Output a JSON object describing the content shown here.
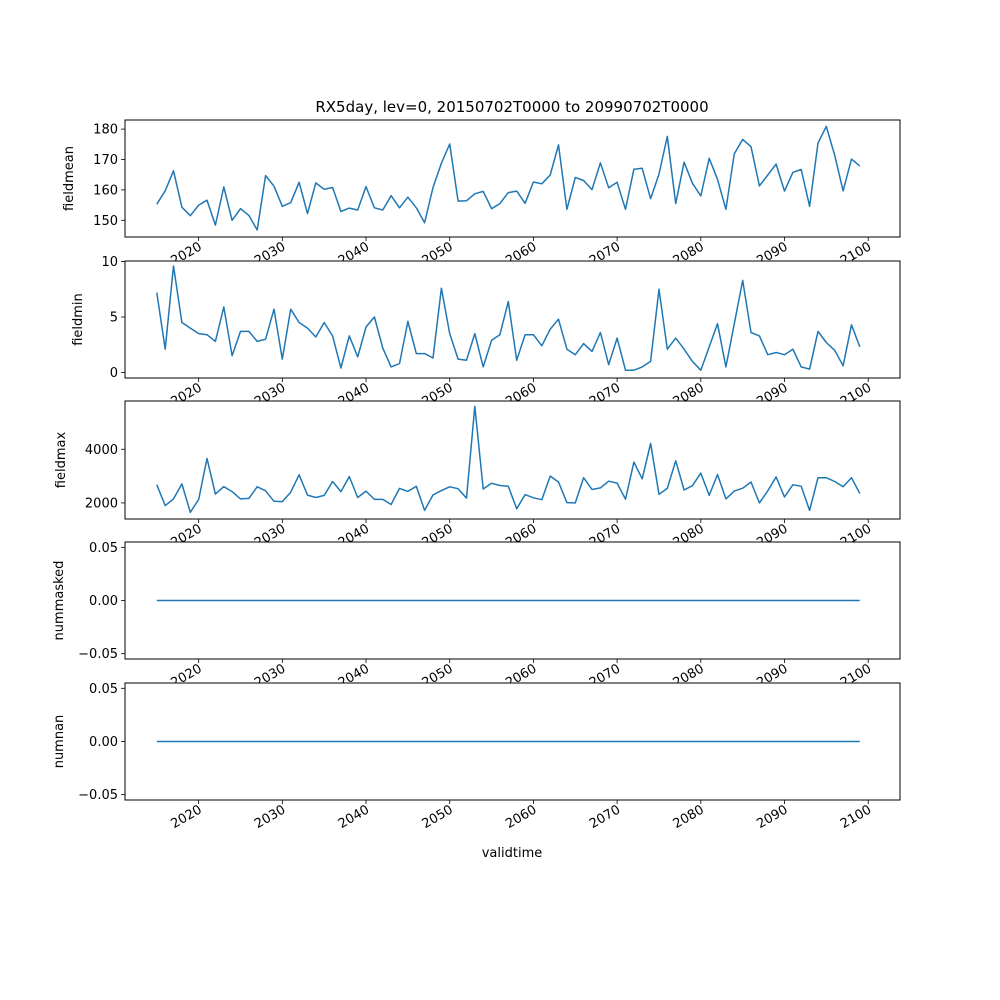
{
  "figure": {
    "title": "RX5day, lev=0, 20150702T0000 to 20990702T0000",
    "xlabel": "validtime",
    "line_color": "#1f77b4"
  },
  "chart_data": [
    {
      "type": "line",
      "ylabel": "fieldmean",
      "xlim": [
        2011.2,
        2103.8
      ],
      "ylim": [
        144.5,
        183
      ],
      "yticks": [
        150,
        160,
        170,
        180
      ],
      "ytick_labels": [
        "150",
        "160",
        "170",
        "180"
      ],
      "xticks": [
        2020,
        2030,
        2040,
        2050,
        2060,
        2070,
        2080,
        2090,
        2100
      ],
      "xtick_labels": [
        "2020",
        "2030",
        "2040",
        "2050",
        "2060",
        "2070",
        "2080",
        "2090",
        "2100"
      ],
      "x": [
        2015,
        2016,
        2017,
        2018,
        2019,
        2020,
        2021,
        2022,
        2023,
        2024,
        2025,
        2026,
        2027,
        2028,
        2029,
        2030,
        2031,
        2032,
        2033,
        2034,
        2035,
        2036,
        2037,
        2038,
        2039,
        2040,
        2041,
        2042,
        2043,
        2044,
        2045,
        2046,
        2047,
        2048,
        2049,
        2050,
        2051,
        2052,
        2053,
        2054,
        2055,
        2056,
        2057,
        2058,
        2059,
        2060,
        2061,
        2062,
        2063,
        2064,
        2065,
        2066,
        2067,
        2068,
        2069,
        2070,
        2071,
        2072,
        2073,
        2074,
        2075,
        2076,
        2077,
        2078,
        2079,
        2080,
        2081,
        2082,
        2083,
        2084,
        2085,
        2086,
        2087,
        2088,
        2089,
        2090,
        2091,
        2092,
        2093,
        2094,
        2095,
        2096,
        2097,
        2098,
        2099
      ],
      "y": [
        155.3,
        159.7,
        166.3,
        154.3,
        151.5,
        155,
        156.6,
        148.4,
        161,
        150,
        153.8,
        151.6,
        146.8,
        164.7,
        161.2,
        154.6,
        155.8,
        162.5,
        152.2,
        162.3,
        160.2,
        160.8,
        152.9,
        154,
        153.4,
        161.1,
        154.1,
        153.4,
        158.1,
        154.1,
        157.6,
        154.1,
        149.2,
        160.8,
        168.8,
        175.1,
        156.3,
        156.4,
        158.7,
        159.5,
        153.8,
        155.5,
        159.1,
        159.6,
        155.6,
        162.6,
        162,
        164.9,
        174.8,
        153.6,
        164.1,
        163.1,
        160.1,
        168.9,
        160.7,
        162.5,
        153.6,
        166.8,
        167.1,
        157.1,
        165.2,
        177.6,
        155.5,
        169.1,
        162.2,
        158,
        170.4,
        163.5,
        153.6,
        171.9,
        176.6,
        174.2,
        161.3,
        164.9,
        168.5,
        159.6,
        165.8,
        166.7,
        154.6,
        175.4,
        180.9,
        171.4,
        159.7,
        170.1,
        167.9
      ]
    },
    {
      "type": "line",
      "ylabel": "fieldmin",
      "xlim": [
        2011.2,
        2103.8
      ],
      "ylim": [
        -0.5,
        10.05
      ],
      "yticks": [
        0,
        5,
        10
      ],
      "ytick_labels": [
        "0",
        "5",
        "10"
      ],
      "xticks": [
        2020,
        2030,
        2040,
        2050,
        2060,
        2070,
        2080,
        2090,
        2100
      ],
      "xtick_labels": [
        "2020",
        "2030",
        "2040",
        "2050",
        "2060",
        "2070",
        "2080",
        "2090",
        "2100"
      ],
      "x": [
        2015,
        2016,
        2017,
        2018,
        2019,
        2020,
        2021,
        2022,
        2023,
        2024,
        2025,
        2026,
        2027,
        2028,
        2029,
        2030,
        2031,
        2032,
        2033,
        2034,
        2035,
        2036,
        2037,
        2038,
        2039,
        2040,
        2041,
        2042,
        2043,
        2044,
        2045,
        2046,
        2047,
        2048,
        2049,
        2050,
        2051,
        2052,
        2053,
        2054,
        2055,
        2056,
        2057,
        2058,
        2059,
        2060,
        2061,
        2062,
        2063,
        2064,
        2065,
        2066,
        2067,
        2068,
        2069,
        2070,
        2071,
        2072,
        2073,
        2074,
        2075,
        2076,
        2077,
        2078,
        2079,
        2080,
        2081,
        2082,
        2083,
        2084,
        2085,
        2086,
        2087,
        2088,
        2089,
        2090,
        2091,
        2092,
        2093,
        2094,
        2095,
        2096,
        2097,
        2098,
        2099
      ],
      "y": [
        7.2,
        2.1,
        9.6,
        4.5,
        4,
        3.5,
        3.4,
        2.8,
        5.9,
        1.5,
        3.7,
        3.7,
        2.8,
        3,
        5.7,
        1.2,
        5.7,
        4.5,
        4,
        3.2,
        4.5,
        3.3,
        0.4,
        3.3,
        1.4,
        4.1,
        5,
        2.2,
        0.5,
        0.8,
        4.6,
        1.7,
        1.7,
        1.3,
        7.6,
        3.5,
        1.2,
        1.1,
        3.5,
        0.5,
        2.9,
        3.4,
        6.4,
        1.1,
        3.4,
        3.4,
        2.4,
        3.9,
        4.8,
        2.1,
        1.6,
        2.6,
        1.9,
        3.6,
        0.7,
        3.1,
        0.2,
        0.2,
        0.5,
        1,
        7.5,
        2.1,
        3.1,
        2.1,
        1,
        0.2,
        2.3,
        4.4,
        0.5,
        4.4,
        8.3,
        3.6,
        3.3,
        1.6,
        1.8,
        1.6,
        2.1,
        0.5,
        0.3,
        3.7,
        2.7,
        2,
        0.6,
        4.3,
        2.3
      ]
    },
    {
      "type": "line",
      "ylabel": "fieldmax",
      "xlim": [
        2011.2,
        2103.8
      ],
      "ylim": [
        1400,
        5800
      ],
      "yticks": [
        2000,
        4000
      ],
      "ytick_labels": [
        "2000",
        "4000"
      ],
      "xticks": [
        2020,
        2030,
        2040,
        2050,
        2060,
        2070,
        2080,
        2090,
        2100
      ],
      "xtick_labels": [
        "2020",
        "2030",
        "2040",
        "2050",
        "2060",
        "2070",
        "2080",
        "2090",
        "2100"
      ],
      "x": [
        2015,
        2016,
        2017,
        2018,
        2019,
        2020,
        2021,
        2022,
        2023,
        2024,
        2025,
        2026,
        2027,
        2028,
        2029,
        2030,
        2031,
        2032,
        2033,
        2034,
        2035,
        2036,
        2037,
        2038,
        2039,
        2040,
        2041,
        2042,
        2043,
        2044,
        2045,
        2046,
        2047,
        2048,
        2049,
        2050,
        2051,
        2052,
        2053,
        2054,
        2055,
        2056,
        2057,
        2058,
        2059,
        2060,
        2061,
        2062,
        2063,
        2064,
        2065,
        2066,
        2067,
        2068,
        2069,
        2070,
        2071,
        2072,
        2073,
        2074,
        2075,
        2076,
        2077,
        2078,
        2079,
        2080,
        2081,
        2082,
        2083,
        2084,
        2085,
        2086,
        2087,
        2088,
        2089,
        2090,
        2091,
        2092,
        2093,
        2094,
        2095,
        2096,
        2097,
        2098,
        2099
      ],
      "y": [
        2680,
        1900,
        2150,
        2710,
        1650,
        2130,
        3660,
        2330,
        2610,
        2420,
        2150,
        2170,
        2600,
        2450,
        2060,
        2050,
        2400,
        3050,
        2290,
        2200,
        2280,
        2800,
        2420,
        2980,
        2200,
        2440,
        2130,
        2130,
        1940,
        2540,
        2430,
        2620,
        1720,
        2300,
        2460,
        2600,
        2530,
        2180,
        5600,
        2520,
        2730,
        2650,
        2620,
        1780,
        2310,
        2190,
        2120,
        3000,
        2780,
        2010,
        2000,
        2940,
        2500,
        2560,
        2810,
        2740,
        2140,
        3520,
        2900,
        4220,
        2320,
        2540,
        3570,
        2480,
        2640,
        3110,
        2280,
        3060,
        2150,
        2440,
        2550,
        2780,
        2000,
        2450,
        2970,
        2220,
        2680,
        2620,
        1720,
        2940,
        2940,
        2800,
        2600,
        2940,
        2350
      ]
    },
    {
      "type": "line",
      "ylabel": "nummasked",
      "xlim": [
        2011.2,
        2103.8
      ],
      "ylim": [
        -0.055,
        0.055
      ],
      "yticks": [
        -0.05,
        0,
        0.05
      ],
      "ytick_labels": [
        "−0.05",
        "0.00",
        "0.05"
      ],
      "xticks": [
        2020,
        2030,
        2040,
        2050,
        2060,
        2070,
        2080,
        2090,
        2100
      ],
      "xtick_labels": [
        "2020",
        "2030",
        "2040",
        "2050",
        "2060",
        "2070",
        "2080",
        "2090",
        "2100"
      ],
      "x": [
        2015,
        2099
      ],
      "y": [
        0,
        0
      ]
    },
    {
      "type": "line",
      "ylabel": "numnan",
      "xlim": [
        2011.2,
        2103.8
      ],
      "ylim": [
        -0.055,
        0.055
      ],
      "yticks": [
        -0.05,
        0,
        0.05
      ],
      "ytick_labels": [
        "−0.05",
        "0.00",
        "0.05"
      ],
      "xticks": [
        2020,
        2030,
        2040,
        2050,
        2060,
        2070,
        2080,
        2090,
        2100
      ],
      "xtick_labels": [
        "2020",
        "2030",
        "2040",
        "2050",
        "2060",
        "2070",
        "2080",
        "2090",
        "2100"
      ],
      "x": [
        2015,
        2099
      ],
      "y": [
        0,
        0
      ]
    }
  ]
}
